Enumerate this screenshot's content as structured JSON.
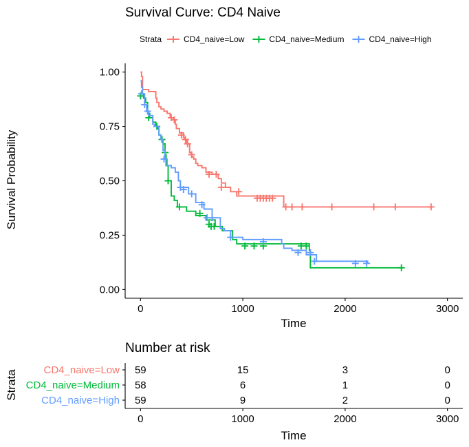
{
  "chart_data": {
    "type": "line",
    "title": "Survival Curve: CD4 Naive",
    "xlabel": "Time",
    "ylabel": "Survival Probability",
    "xlim": [
      -150,
      3150
    ],
    "ylim": [
      -0.04,
      1.04
    ],
    "xticks": [
      0,
      1000,
      2000,
      3000
    ],
    "yticks": [
      0,
      0.25,
      0.5,
      0.75,
      1
    ],
    "ytick_labels": [
      "0.00",
      "0.25",
      "0.50",
      "0.75",
      "1.00"
    ],
    "grid": false,
    "legend": {
      "title": "Strata",
      "position": "top"
    },
    "colors": {
      "Low": "#F8766D",
      "Medium": "#00BA38",
      "High": "#619CFF"
    },
    "series": [
      {
        "name": "CD4_naive=Low",
        "color": "#F8766D",
        "steps": [
          [
            0,
            1.0
          ],
          [
            10,
            0.98
          ],
          [
            20,
            0.92
          ],
          [
            80,
            0.91
          ],
          [
            150,
            0.88
          ],
          [
            160,
            0.86
          ],
          [
            180,
            0.84
          ],
          [
            200,
            0.83
          ],
          [
            230,
            0.82
          ],
          [
            260,
            0.81
          ],
          [
            290,
            0.79
          ],
          [
            320,
            0.78
          ],
          [
            340,
            0.76
          ],
          [
            350,
            0.74
          ],
          [
            380,
            0.72
          ],
          [
            420,
            0.7
          ],
          [
            430,
            0.69
          ],
          [
            450,
            0.67
          ],
          [
            480,
            0.63
          ],
          [
            500,
            0.61
          ],
          [
            520,
            0.6
          ],
          [
            540,
            0.58
          ],
          [
            560,
            0.57
          ],
          [
            600,
            0.56
          ],
          [
            640,
            0.54
          ],
          [
            700,
            0.53
          ],
          [
            760,
            0.51
          ],
          [
            790,
            0.49
          ],
          [
            830,
            0.47
          ],
          [
            880,
            0.45
          ],
          [
            940,
            0.43
          ],
          [
            1400,
            0.38
          ],
          [
            2860,
            0.38
          ]
        ],
        "censor": [
          [
            300,
            0.79
          ],
          [
            330,
            0.78
          ],
          [
            400,
            0.71
          ],
          [
            440,
            0.69
          ],
          [
            460,
            0.67
          ],
          [
            500,
            0.62
          ],
          [
            670,
            0.53
          ],
          [
            740,
            0.53
          ],
          [
            790,
            0.47
          ],
          [
            960,
            0.45
          ],
          [
            1140,
            0.42
          ],
          [
            1170,
            0.42
          ],
          [
            1200,
            0.42
          ],
          [
            1230,
            0.42
          ],
          [
            1260,
            0.42
          ],
          [
            1290,
            0.42
          ],
          [
            1420,
            0.38
          ],
          [
            1480,
            0.38
          ],
          [
            1580,
            0.38
          ],
          [
            1870,
            0.38
          ],
          [
            2280,
            0.38
          ],
          [
            2490,
            0.38
          ],
          [
            2840,
            0.38
          ]
        ]
      },
      {
        "name": "CD4_naive=Medium",
        "color": "#00BA38",
        "steps": [
          [
            0,
            0.9
          ],
          [
            30,
            0.88
          ],
          [
            50,
            0.86
          ],
          [
            70,
            0.81
          ],
          [
            90,
            0.79
          ],
          [
            120,
            0.77
          ],
          [
            150,
            0.75
          ],
          [
            170,
            0.74
          ],
          [
            180,
            0.71
          ],
          [
            200,
            0.69
          ],
          [
            220,
            0.67
          ],
          [
            240,
            0.62
          ],
          [
            250,
            0.57
          ],
          [
            270,
            0.5
          ],
          [
            300,
            0.43
          ],
          [
            330,
            0.41
          ],
          [
            360,
            0.38
          ],
          [
            450,
            0.36
          ],
          [
            540,
            0.34
          ],
          [
            640,
            0.32
          ],
          [
            730,
            0.29
          ],
          [
            800,
            0.27
          ],
          [
            900,
            0.23
          ],
          [
            940,
            0.21
          ],
          [
            1650,
            0.18
          ],
          [
            1660,
            0.1
          ],
          [
            2560,
            0.1
          ]
        ],
        "censor": [
          [
            0,
            0.89
          ],
          [
            80,
            0.79
          ],
          [
            160,
            0.75
          ],
          [
            210,
            0.69
          ],
          [
            240,
            0.63
          ],
          [
            270,
            0.5
          ],
          [
            380,
            0.38
          ],
          [
            580,
            0.35
          ],
          [
            670,
            0.3
          ],
          [
            690,
            0.29
          ],
          [
            720,
            0.29
          ],
          [
            1020,
            0.2
          ],
          [
            1110,
            0.2
          ],
          [
            1200,
            0.2
          ],
          [
            1570,
            0.2
          ],
          [
            1620,
            0.2
          ],
          [
            2550,
            0.1
          ]
        ]
      },
      {
        "name": "CD4_naive=High",
        "color": "#619CFF",
        "steps": [
          [
            0,
            0.96
          ],
          [
            10,
            0.93
          ],
          [
            20,
            0.9
          ],
          [
            40,
            0.85
          ],
          [
            60,
            0.82
          ],
          [
            80,
            0.8
          ],
          [
            120,
            0.76
          ],
          [
            140,
            0.75
          ],
          [
            180,
            0.71
          ],
          [
            200,
            0.69
          ],
          [
            220,
            0.64
          ],
          [
            240,
            0.6
          ],
          [
            260,
            0.57
          ],
          [
            300,
            0.56
          ],
          [
            340,
            0.54
          ],
          [
            370,
            0.5
          ],
          [
            390,
            0.47
          ],
          [
            470,
            0.44
          ],
          [
            540,
            0.4
          ],
          [
            620,
            0.37
          ],
          [
            700,
            0.33
          ],
          [
            780,
            0.28
          ],
          [
            820,
            0.27
          ],
          [
            880,
            0.24
          ],
          [
            1000,
            0.23
          ],
          [
            1380,
            0.21
          ],
          [
            1400,
            0.19
          ],
          [
            1480,
            0.18
          ],
          [
            1620,
            0.16
          ],
          [
            1720,
            0.13
          ],
          [
            2220,
            0.12
          ]
        ],
        "censor": [
          [
            10,
            0.9
          ],
          [
            40,
            0.85
          ],
          [
            70,
            0.82
          ],
          [
            230,
            0.6
          ],
          [
            390,
            0.47
          ],
          [
            420,
            0.46
          ],
          [
            500,
            0.44
          ],
          [
            600,
            0.39
          ],
          [
            650,
            0.33
          ],
          [
            700,
            0.33
          ],
          [
            880,
            0.24
          ],
          [
            1200,
            0.22
          ],
          [
            1540,
            0.17
          ],
          [
            1660,
            0.17
          ],
          [
            1700,
            0.13
          ],
          [
            2100,
            0.12
          ],
          [
            2210,
            0.12
          ]
        ]
      }
    ],
    "risk_table": {
      "title": "Number at risk",
      "ylabel": "Strata",
      "xlabel": "Time",
      "times": [
        0,
        1000,
        2000,
        3000
      ],
      "rows": [
        {
          "name": "CD4_naive=Low",
          "color": "#F8766D",
          "values": [
            "59",
            "15",
            "3",
            "0"
          ]
        },
        {
          "name": "CD4_naive=Medium",
          "color": "#00BA38",
          "values": [
            "58",
            "6",
            "1",
            "0"
          ]
        },
        {
          "name": "CD4_naive=High",
          "color": "#619CFF",
          "values": [
            "59",
            "9",
            "2",
            "0"
          ]
        }
      ]
    }
  }
}
